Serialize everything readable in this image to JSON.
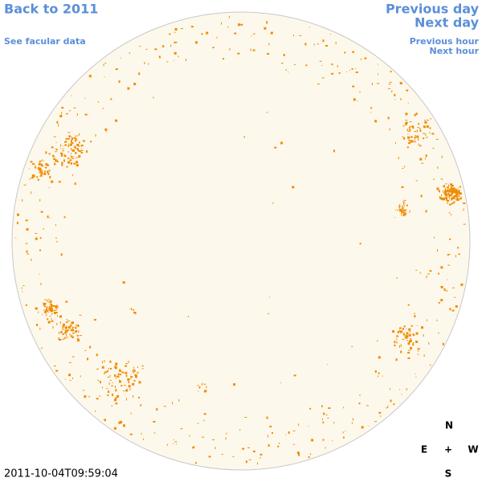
{
  "header": {
    "back_link": "Back to 2011",
    "facular_link": "See facular data"
  },
  "navigation": {
    "previous_day": "Previous day",
    "next_day": "Next day",
    "previous_hour": "Previous hour",
    "next_hour": "Next hour"
  },
  "compass": {
    "north": "N",
    "east": "E",
    "center": "+",
    "west": "W",
    "south": "S"
  },
  "timestamp": "2011-10-04T09:59:04"
}
